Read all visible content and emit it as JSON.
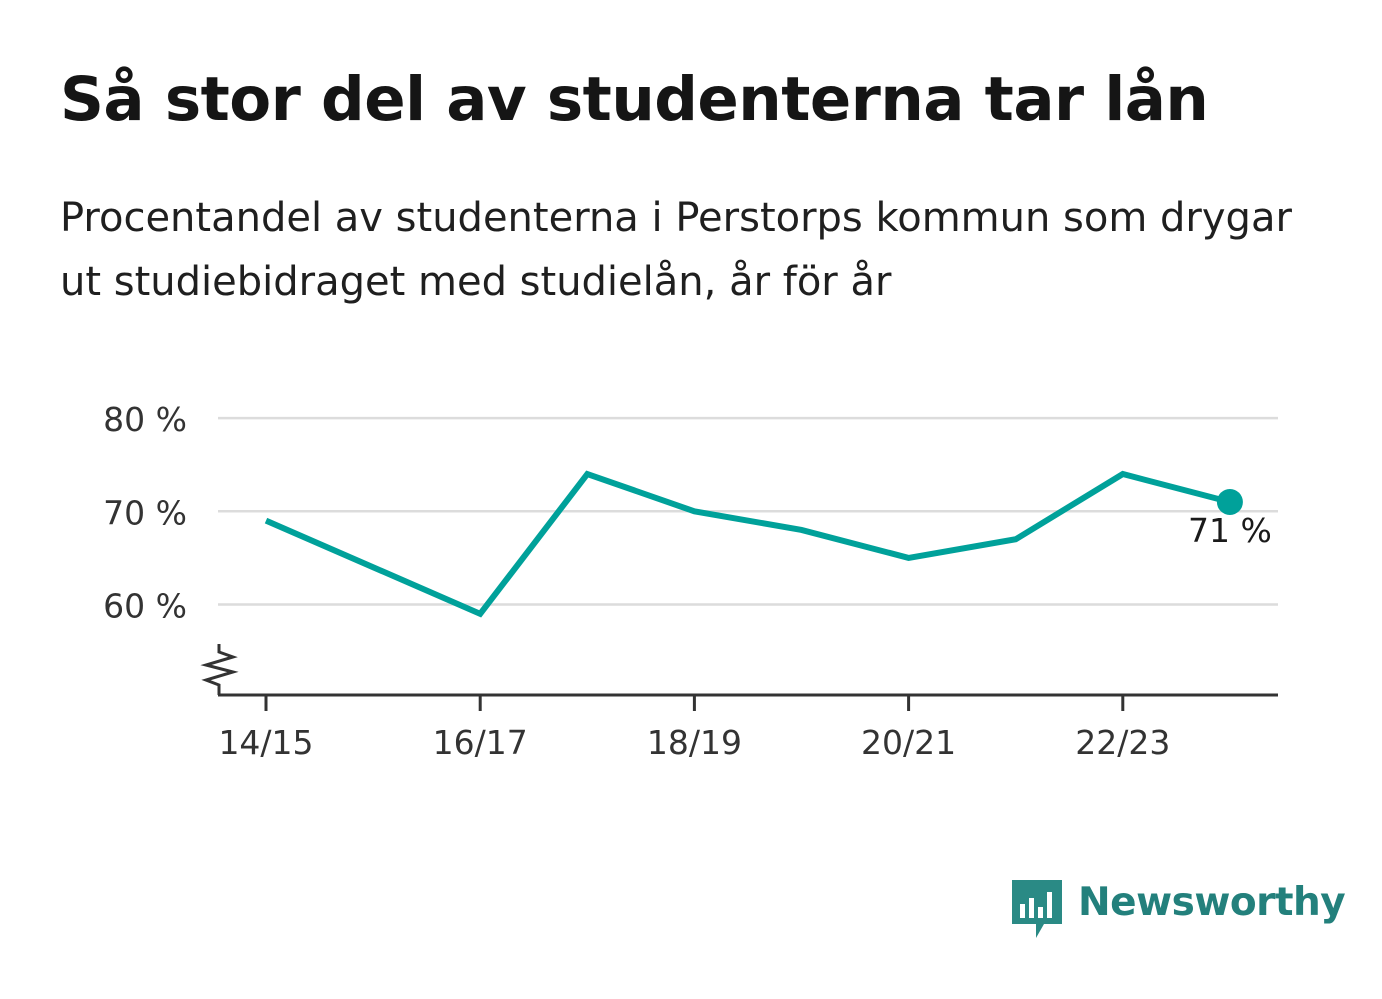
{
  "title": "Så stor del av studenterna tar lån",
  "subtitle": "Procentandel av studenterna i Perstorps kommun som drygar ut studiebidraget med studielån, år för år",
  "brand": {
    "name": "Newsworthy",
    "icon": "bar-chart-speech-bubble-icon",
    "color": "#23807c"
  },
  "chart_data": {
    "type": "line",
    "x": [
      "14/15",
      "15/16",
      "16/17",
      "17/18",
      "18/19",
      "19/20",
      "20/21",
      "21/22",
      "22/23",
      "23/24"
    ],
    "series": [
      {
        "values": [
          69,
          64,
          59,
          74,
          70,
          68,
          65,
          67,
          74,
          71
        ],
        "color": "#00a19a"
      }
    ],
    "x_tick_labels": [
      "14/15",
      "16/17",
      "18/19",
      "20/21",
      "22/23"
    ],
    "y_ticks": [
      60,
      70,
      80
    ],
    "y_tick_labels": [
      "60 %",
      "70 %",
      "80 %"
    ],
    "ylim": [
      50,
      80
    ],
    "y_axis_broken": true,
    "grid": true,
    "last_value_label": "71 %",
    "xlabel": "",
    "ylabel": ""
  }
}
